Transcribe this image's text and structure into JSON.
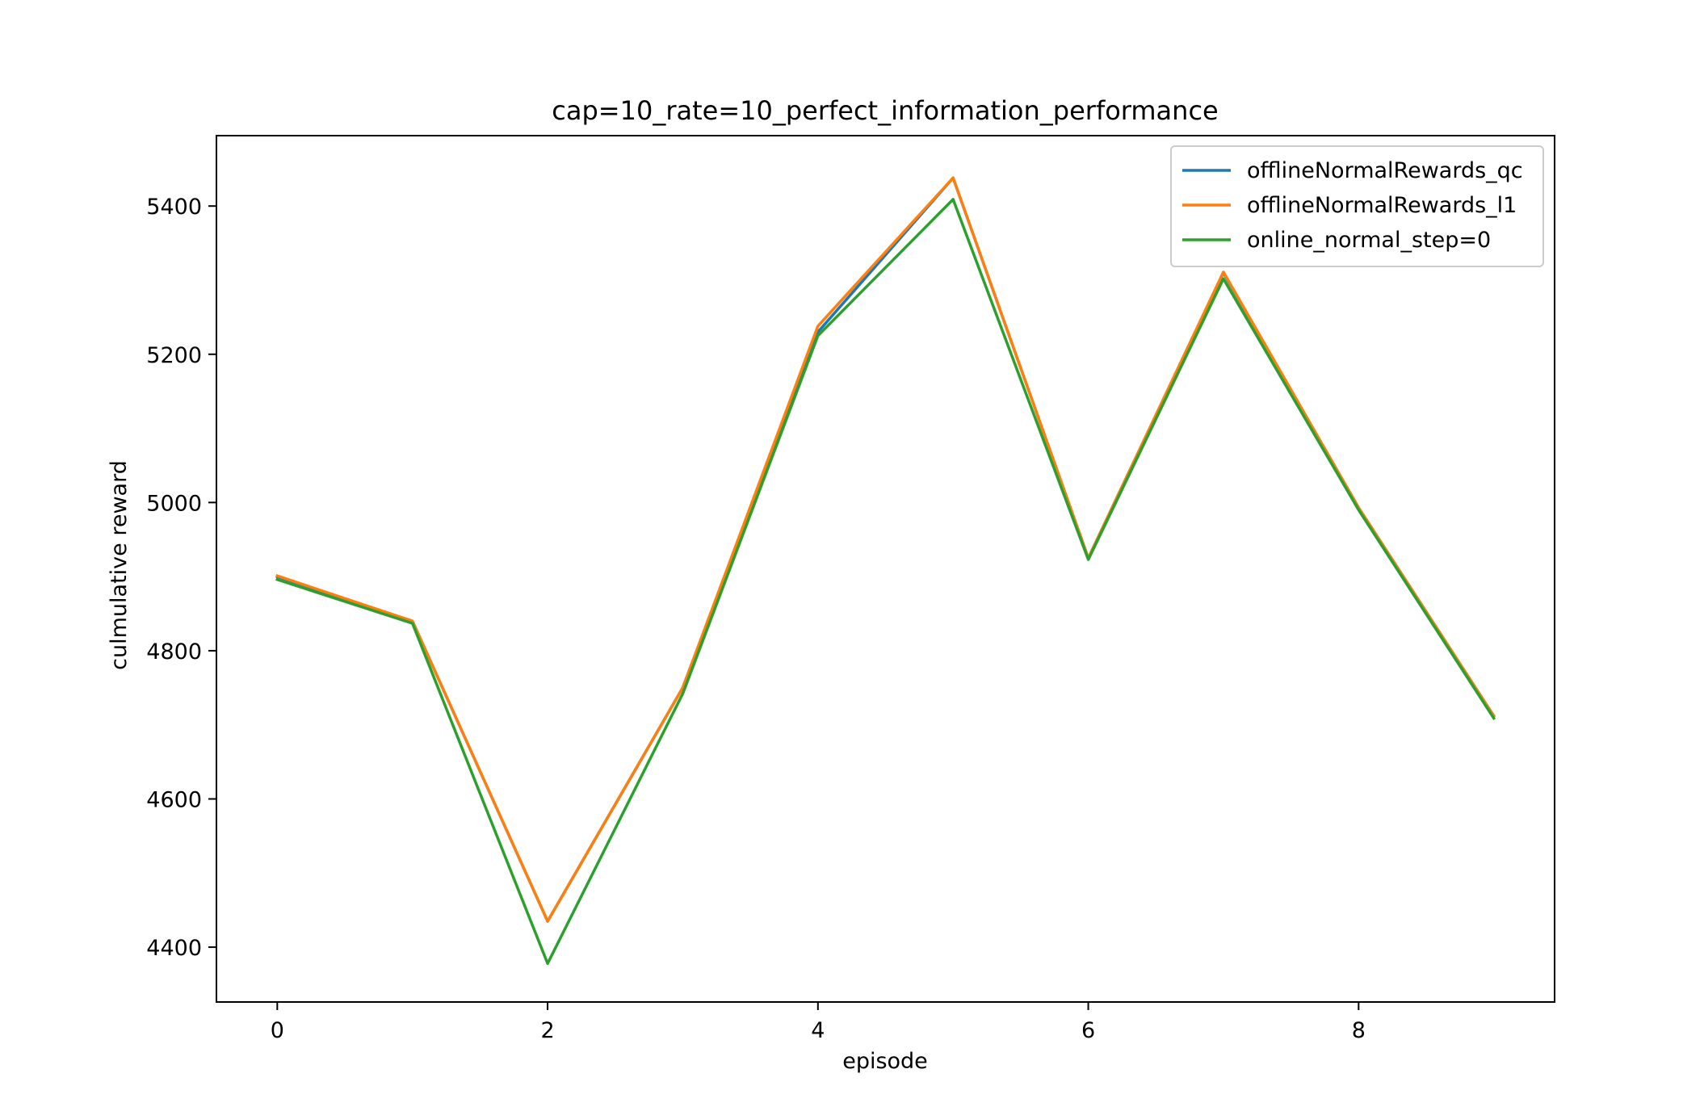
{
  "chart_data": {
    "type": "line",
    "title": "cap=10_rate=10_perfect_information_performance",
    "xlabel": "episode",
    "ylabel": "culmulative reward",
    "x": [
      0,
      1,
      2,
      3,
      4,
      5,
      6,
      7,
      8,
      9
    ],
    "xlim": [
      -0.45,
      9.45
    ],
    "ylim": [
      4326,
      5495
    ],
    "xticks": [
      0,
      2,
      4,
      6,
      8
    ],
    "yticks": [
      4400,
      4600,
      4800,
      5000,
      5200,
      5400
    ],
    "legend_position": "upper right",
    "grid": false,
    "series": [
      {
        "name": "offlineNormalRewards_qc",
        "color": "#1f77b4",
        "values": [
          4900,
          4840,
          4435,
          4750,
          5230,
          5438,
          4925,
          5310,
          4993,
          4712
        ]
      },
      {
        "name": "offlineNormalRewards_l1",
        "color": "#ff7f0e",
        "values": [
          4901,
          4840,
          4435,
          4750,
          5238,
          5438,
          4925,
          5311,
          4993,
          4712
        ]
      },
      {
        "name": "online_normal_step=0",
        "color": "#2ca02c",
        "values": [
          4896,
          4837,
          4378,
          4742,
          5225,
          5409,
          4923,
          5302,
          4990,
          4709
        ]
      }
    ]
  }
}
